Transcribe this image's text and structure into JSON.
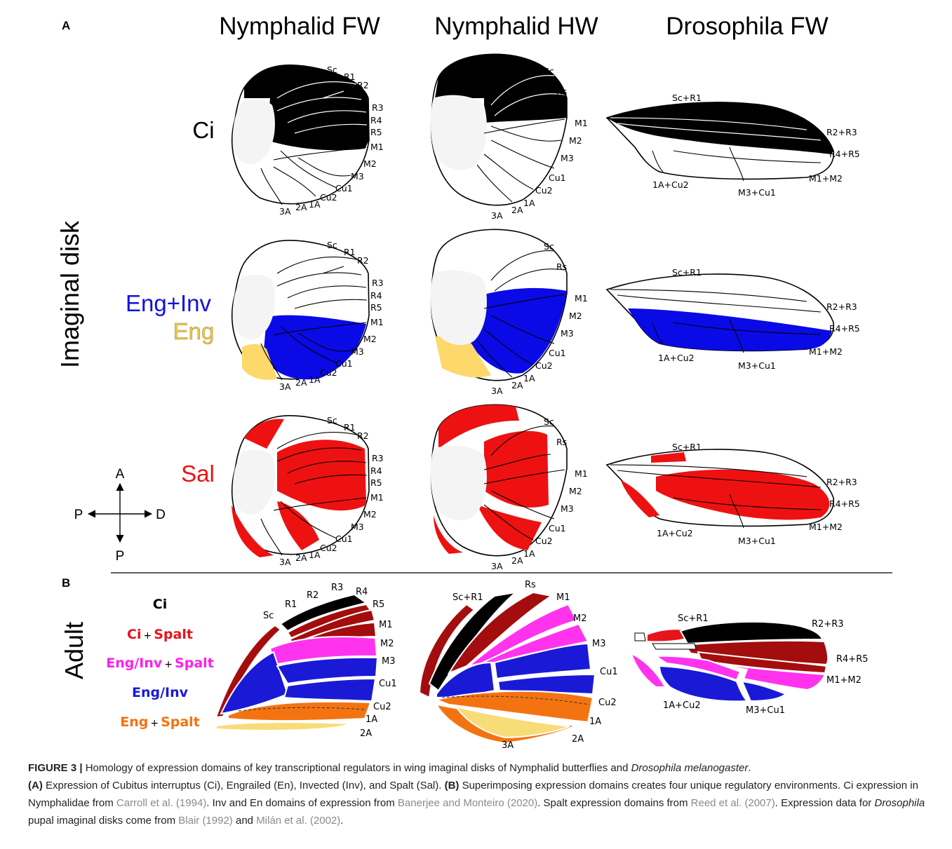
{
  "panels": {
    "a": "A",
    "b": "B"
  },
  "columns": [
    "Nymphalid FW",
    "Nymphalid HW",
    "Drosophila FW"
  ],
  "side_label_a": "Imaginal disk",
  "side_label_b": "Adult",
  "rows": {
    "ci": {
      "label": "Ci"
    },
    "eng": {
      "label_1": "Eng+Inv",
      "label_2": "Eng"
    },
    "sal": {
      "label": "Sal"
    }
  },
  "orientation": {
    "anterior": "A",
    "posterior": "P",
    "proximal": "P",
    "distal": "D"
  },
  "veins": {
    "nymphalid_fw": [
      "Sc",
      "R1",
      "R2",
      "R3",
      "R4",
      "R5",
      "M1",
      "M2",
      "M3",
      "Cu1",
      "Cu2",
      "1A",
      "2A",
      "3A"
    ],
    "nymphalid_hw": [
      "Sc",
      "Rs",
      "M1",
      "M2",
      "M3",
      "Cu1",
      "Cu2",
      "1A",
      "2A",
      "3A"
    ],
    "drosophila_fw": [
      "Sc+R1",
      "R2+R3",
      "R4+R5",
      "M1+M2",
      "M3+Cu1",
      "1A+Cu2"
    ],
    "adult_fw": [
      "Sc",
      "R1",
      "R2",
      "R3",
      "R4",
      "R5",
      "M1",
      "M2",
      "M3",
      "Cu1",
      "Cu2",
      "1A",
      "2A"
    ],
    "adult_hw": [
      "Sc+R1",
      "Rs",
      "M1",
      "M2",
      "M3",
      "Cu1",
      "Cu2",
      "1A",
      "2A",
      "3A"
    ],
    "adult_dros": [
      "Sc+R1",
      "R2+R3",
      "R4+R5",
      "M1+M2",
      "1A+Cu2",
      "M3+Cu1"
    ]
  },
  "legend": [
    {
      "a": "Ci",
      "plus": "",
      "b": "",
      "color_a": "#000000",
      "color_b": "#000000"
    },
    {
      "a": "Ci",
      "plus": "+",
      "b": "Spalt",
      "color_a": "#e8141c",
      "color_b": "#e8141c"
    },
    {
      "a": "Eng/Inv",
      "plus": "+",
      "b": "Spalt",
      "color_a": "#ff1ef0",
      "color_b": "#ff1ef0"
    },
    {
      "a": "Eng/Inv",
      "plus": "",
      "b": "",
      "color_a": "#1a1ad6",
      "color_b": "#1a1ad6"
    },
    {
      "a": "Eng",
      "plus": "+",
      "b": "Spalt",
      "color_a": "#f4720e",
      "color_b": "#f4720e"
    }
  ],
  "colors": {
    "ci": "#000000",
    "eng_inv": "#0a0ae6",
    "eng": "#fcd96a",
    "sal": "#ee1111",
    "ci_spalt": "#a40d0d",
    "eng_inv_spalt": "#ff33ee",
    "eng_spalt": "#f47311",
    "eng_yellow": "#f8dc78"
  },
  "caption": {
    "fig": "FIGURE 3 |",
    "s1": " Homology of expression domains of key transcriptional regulators in wing imaginal disks of Nymphalid butterflies and ",
    "s1_italic": "Drosophila melanogaster",
    "s1_end": ".",
    "a": "(A)",
    "a_text": " Expression of Cubitus interruptus (Ci), Engrailed (En), Invected (Inv), and Spalt (Sal). ",
    "b": "(B)",
    "b_text": " Superimposing expression domains creates four unique regulatory environments. Ci expression in Nymphalidae from ",
    "ref1": "Carroll et al. (1994)",
    "t2": ". Inv and En domains of expression from ",
    "ref2": "Banerjee and Monteiro (2020)",
    "t3": ". Spalt expression domains from ",
    "ref3": "Reed et al. (2007)",
    "t4": ". Expression data for ",
    "t4_italic": "Drosophila",
    "t5": " pupal imaginal disks come from ",
    "ref4": "Blair (1992)",
    "t6": " and ",
    "ref5": "Milán et al. (2002)",
    "t7": "."
  }
}
